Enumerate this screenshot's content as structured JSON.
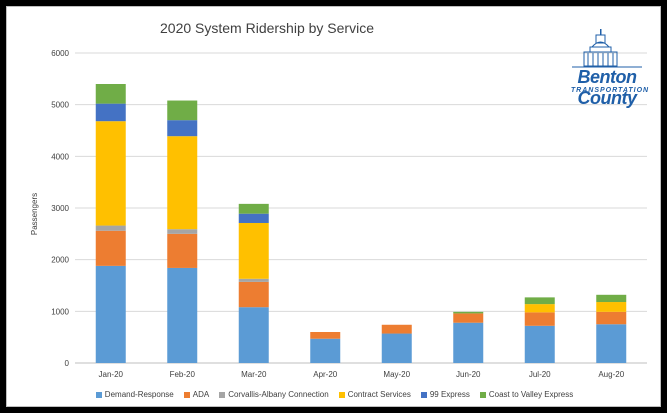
{
  "chart_data": {
    "type": "bar",
    "stacked": true,
    "title": "2020 System Ridership by Service",
    "xlabel": "",
    "ylabel": "Passengers",
    "ylim": [
      0,
      6000
    ],
    "yticks": [
      0,
      1000,
      2000,
      3000,
      4000,
      5000,
      6000
    ],
    "grid": true,
    "legend_position": "bottom",
    "categories": [
      "Jan-20",
      "Feb-20",
      "Mar-20",
      "Apr-20",
      "May-20",
      "Jun-20",
      "Jul-20",
      "Aug-20"
    ],
    "series": [
      {
        "name": "Demand-Response",
        "color": "#5b9bd5",
        "values": [
          1880,
          1840,
          1080,
          470,
          570,
          780,
          720,
          750
        ]
      },
      {
        "name": "ADA",
        "color": "#ed7d31",
        "values": [
          680,
          660,
          490,
          130,
          170,
          180,
          260,
          240
        ]
      },
      {
        "name": "Corvallis-Albany Connection",
        "color": "#a5a5a5",
        "values": [
          100,
          90,
          60,
          0,
          0,
          0,
          0,
          0
        ]
      },
      {
        "name": "Contract Services",
        "color": "#ffc000",
        "values": [
          2020,
          1800,
          1080,
          0,
          0,
          0,
          160,
          190
        ]
      },
      {
        "name": "99 Express",
        "color": "#4472c4",
        "values": [
          340,
          310,
          180,
          0,
          0,
          0,
          0,
          0
        ]
      },
      {
        "name": "Coast to Valley Express",
        "color": "#70ad47",
        "values": [
          380,
          380,
          190,
          0,
          0,
          30,
          130,
          140
        ]
      }
    ]
  },
  "logo": {
    "name": "Benton County",
    "subtitle": "TRANSPORTATION",
    "color": "#1f5fa8"
  }
}
